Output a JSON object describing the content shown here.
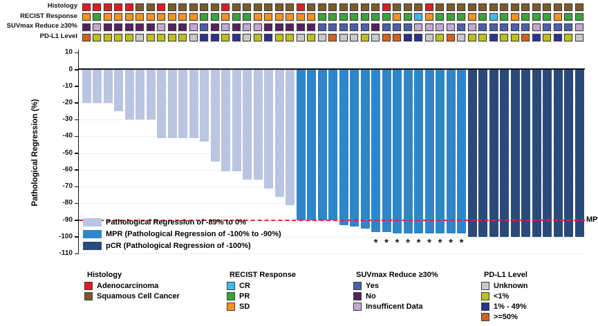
{
  "annotation_tracks": {
    "rows": [
      {
        "label": "Histology",
        "values": [
          "adenocarcinoma",
          "adenocarcinoma",
          "adenocarcinoma",
          "adenocarcinoma",
          "adenocarcinoma",
          "squamous",
          "squamous",
          "adenocarcinoma",
          "squamous",
          "squamous",
          "squamous",
          "squamous",
          "squamous",
          "adenocarcinoma",
          "squamous",
          "squamous",
          "squamous",
          "squamous",
          "squamous",
          "squamous",
          "adenocarcinoma",
          "squamous",
          "squamous",
          "squamous",
          "squamous",
          "squamous",
          "squamous",
          "squamous",
          "adenocarcinoma",
          "squamous",
          "squamous",
          "squamous",
          "adenocarcinoma",
          "squamous",
          "squamous",
          "squamous",
          "squamous",
          "squamous",
          "squamous",
          "squamous",
          "squamous",
          "squamous",
          "squamous",
          "squamous",
          "squamous",
          "squamous",
          "squamous"
        ]
      },
      {
        "label": "RECIST Response",
        "values": [
          "sd",
          "pr",
          "sd",
          "sd",
          "sd",
          "sd",
          "sd",
          "sd",
          "sd",
          "sd",
          "sd",
          "pr",
          "pr",
          "sd",
          "pr",
          "pr",
          "sd",
          "sd",
          "sd",
          "sd",
          "sd",
          "sd",
          "pr",
          "pr",
          "pr",
          "pr",
          "pr",
          "pr",
          "pr",
          "sd",
          "pr",
          "cr",
          "sd",
          "pr",
          "pr",
          "pr",
          "sd",
          "pr",
          "cr",
          "pr",
          "sd",
          "pr",
          "pr",
          "pr",
          "sd",
          "pr",
          "pr"
        ]
      },
      {
        "label": "SUVmax Reduce ≥30%",
        "values": [
          "no",
          "insufficient",
          "no",
          "no",
          "no",
          "no",
          "no",
          "insufficient",
          "no",
          "no",
          "insufficient",
          "yes",
          "no",
          "insufficient",
          "no",
          "insufficient",
          "insufficient",
          "no",
          "no",
          "no",
          "no",
          "no",
          "yes",
          "yes",
          "yes",
          "yes",
          "yes",
          "no",
          "yes",
          "yes",
          "yes",
          "insufficient",
          "insufficient",
          "insufficient",
          "insufficient",
          "yes",
          "insufficient",
          "yes",
          "yes",
          "yes",
          "yes",
          "yes",
          "insufficient",
          "yes",
          "yes",
          "yes",
          "insufficient"
        ]
      },
      {
        "label": "PD-L1 Level",
        "values": [
          "ge50",
          "lt1",
          "lt1",
          "lt1",
          "lt1",
          "unknown",
          "lt1",
          "lt1",
          "lt1",
          "lt1",
          "unknown",
          "b1_49",
          "b1_49",
          "lt1",
          "b1_49",
          "unknown",
          "lt1",
          "b1_49",
          "lt1",
          "lt1",
          "unknown",
          "lt1",
          "unknown",
          "ge50",
          "unknown",
          "unknown",
          "lt1",
          "unknown",
          "ge50",
          "ge50",
          "b1_49",
          "b1_49",
          "unknown",
          "lt1",
          "ge50",
          "unknown",
          "lt1",
          "lt1",
          "b1_49",
          "lt1",
          "lt1",
          "ge50",
          "b1_49",
          "lt1",
          "b1_49",
          "lt1",
          "unknown"
        ]
      }
    ],
    "palette": {
      "adenocarcinoma": "#DF1C24",
      "squamous": "#7A5B2A",
      "cr": "#3FB8E9",
      "pr": "#39A439",
      "sd": "#F6921E",
      "yes": "#4C5FA9",
      "no": "#552160",
      "insufficient": "#C3A8D1",
      "unknown": "#C9C9C9",
      "lt1": "#BEBE1F",
      "b1_49": "#2A3390",
      "ge50": "#D2611C"
    }
  },
  "chart_data": {
    "type": "bar",
    "title": "",
    "xlabel": "",
    "ylabel": "Pathological Regression (%)",
    "ylim": [
      -110,
      10
    ],
    "yticks": [
      10,
      0,
      -10,
      -20,
      -30,
      -40,
      -50,
      -60,
      -70,
      -80,
      -90,
      -100,
      -110
    ],
    "grid": "faint horizontal",
    "n_patients": 47,
    "values": [
      -20,
      -20,
      -20,
      -25,
      -30,
      -30,
      -30,
      -41,
      -41,
      -41,
      -41,
      -43,
      -55,
      -61,
      -61,
      -66,
      -66,
      -71,
      -76,
      -81,
      -90,
      -90,
      -90,
      -90,
      -93,
      -94,
      -95,
      -97,
      -97,
      -98,
      -98,
      -98,
      -98,
      -98,
      -98,
      -98,
      -100,
      -100,
      -100,
      -100,
      -100,
      -100,
      -100,
      -100,
      -100,
      -100,
      -100
    ],
    "groups": [
      "reg",
      "reg",
      "reg",
      "reg",
      "reg",
      "reg",
      "reg",
      "reg",
      "reg",
      "reg",
      "reg",
      "reg",
      "reg",
      "reg",
      "reg",
      "reg",
      "reg",
      "reg",
      "reg",
      "reg",
      "mpr",
      "mpr",
      "mpr",
      "mpr",
      "mpr",
      "mpr",
      "mpr",
      "mpr",
      "mpr",
      "mpr",
      "mpr",
      "mpr",
      "mpr",
      "mpr",
      "mpr",
      "mpr",
      "pcr",
      "pcr",
      "pcr",
      "pcr",
      "pcr",
      "pcr",
      "pcr",
      "pcr",
      "pcr",
      "pcr",
      "pcr"
    ],
    "palette": {
      "reg": "#B9C5E1",
      "mpr": "#2E86C8",
      "pcr": "#2A4A7B"
    },
    "reference_line": {
      "value": -90,
      "label": "MPR",
      "color": "#EC2227",
      "style": "dashed"
    },
    "asterisk_columns": [
      28,
      29,
      30,
      31,
      32,
      33,
      34,
      35,
      36
    ],
    "legend_position": "inside bottom-left",
    "legend": [
      {
        "key": "reg",
        "label": "Pathological Regression of -89% to 0%"
      },
      {
        "key": "mpr",
        "label": "MPR (Pathological Regression of -100% to -90%)"
      },
      {
        "key": "pcr",
        "label": "pCR (Pathological Regression of -100%)"
      }
    ]
  },
  "bottom_legend": {
    "groups": [
      {
        "title": "Histology",
        "items": [
          {
            "key": "adenocarcinoma",
            "label": "Adenocarcinoma"
          },
          {
            "key": "squamous",
            "label": "Squamous Cell Cancer"
          }
        ]
      },
      {
        "title": "RECIST Response",
        "items": [
          {
            "key": "cr",
            "label": "CR"
          },
          {
            "key": "pr",
            "label": "PR"
          },
          {
            "key": "sd",
            "label": "SD"
          }
        ]
      },
      {
        "title": "SUVmax Reduce ≥30%",
        "items": [
          {
            "key": "yes",
            "label": "Yes"
          },
          {
            "key": "no",
            "label": "No"
          },
          {
            "key": "insufficient",
            "label": "Insufficent Data"
          }
        ]
      },
      {
        "title": "PD-L1 Level",
        "items": [
          {
            "key": "unknown",
            "label": "Unknown"
          },
          {
            "key": "lt1",
            "label": "<1%"
          },
          {
            "key": "b1_49",
            "label": "1% - 49%"
          },
          {
            "key": "ge50",
            "label": ">=50%"
          }
        ]
      }
    ]
  }
}
